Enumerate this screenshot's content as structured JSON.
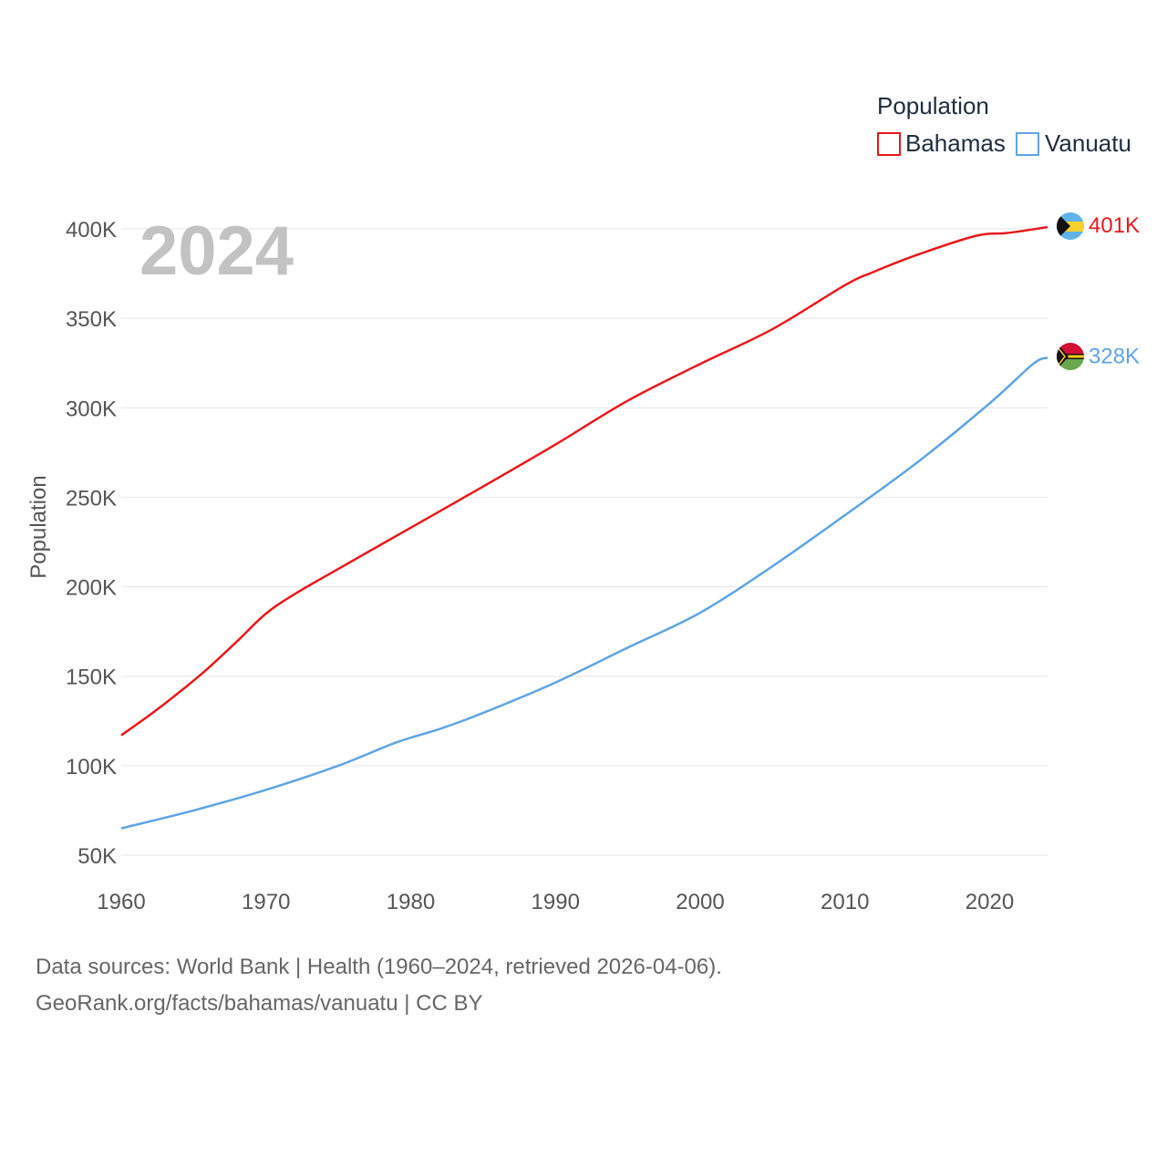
{
  "chart_data": {
    "type": "line",
    "title": "",
    "current_year": "2024",
    "legend_title": "Population",
    "ylabel": "Population",
    "xlabel": "",
    "xlim": [
      1960,
      2024
    ],
    "ylim": [
      50000,
      400000
    ],
    "x_ticks": [
      {
        "value": 1960,
        "label": "1960"
      },
      {
        "value": 1970,
        "label": "1970"
      },
      {
        "value": 1980,
        "label": "1980"
      },
      {
        "value": 1990,
        "label": "1990"
      },
      {
        "value": 2000,
        "label": "2000"
      },
      {
        "value": 2010,
        "label": "2010"
      },
      {
        "value": 2020,
        "label": "2020"
      }
    ],
    "y_ticks": [
      {
        "value": 50000,
        "label": "50K"
      },
      {
        "value": 100000,
        "label": "100K"
      },
      {
        "value": 150000,
        "label": "150K"
      },
      {
        "value": 200000,
        "label": "200K"
      },
      {
        "value": 250000,
        "label": "250K"
      },
      {
        "value": 300000,
        "label": "300K"
      },
      {
        "value": 350000,
        "label": "350K"
      },
      {
        "value": 400000,
        "label": "400K"
      }
    ],
    "series": [
      {
        "name": "Bahamas",
        "color": "#e8191c",
        "end_label": "401K",
        "flag_icon": "bahamas-flag-icon",
        "x": [
          1960,
          1962,
          1964,
          1966,
          1968,
          1970,
          1972,
          1975,
          1980,
          1985,
          1990,
          1995,
          2000,
          2005,
          2010,
          2012,
          2015,
          2019,
          2021,
          2022,
          2024
        ],
        "values": [
          117000,
          128500,
          141000,
          154500,
          169500,
          185000,
          196000,
          210000,
          233000,
          256000,
          279500,
          304000,
          324500,
          344000,
          368500,
          376000,
          385500,
          396000,
          397500,
          398500,
          401000
        ]
      },
      {
        "name": "Vanuatu",
        "color": "#5fa4e5",
        "end_label": "328K",
        "flag_icon": "vanuatu-flag-icon",
        "x": [
          1960,
          1965,
          1970,
          1975,
          1979,
          1982,
          1985,
          1990,
          1995,
          2000,
          2005,
          2010,
          2015,
          2020,
          2023,
          2024
        ],
        "values": [
          65000,
          75000,
          86500,
          100000,
          113000,
          120500,
          129500,
          146500,
          166000,
          185500,
          211500,
          240000,
          269500,
          302500,
          324500,
          328000
        ]
      }
    ]
  },
  "source": {
    "line1": "Data sources: World Bank | Health (1960–2024, retrieved 2026-04-06).",
    "line2": "GeoRank.org/facts/bahamas/vanuatu | CC BY"
  }
}
